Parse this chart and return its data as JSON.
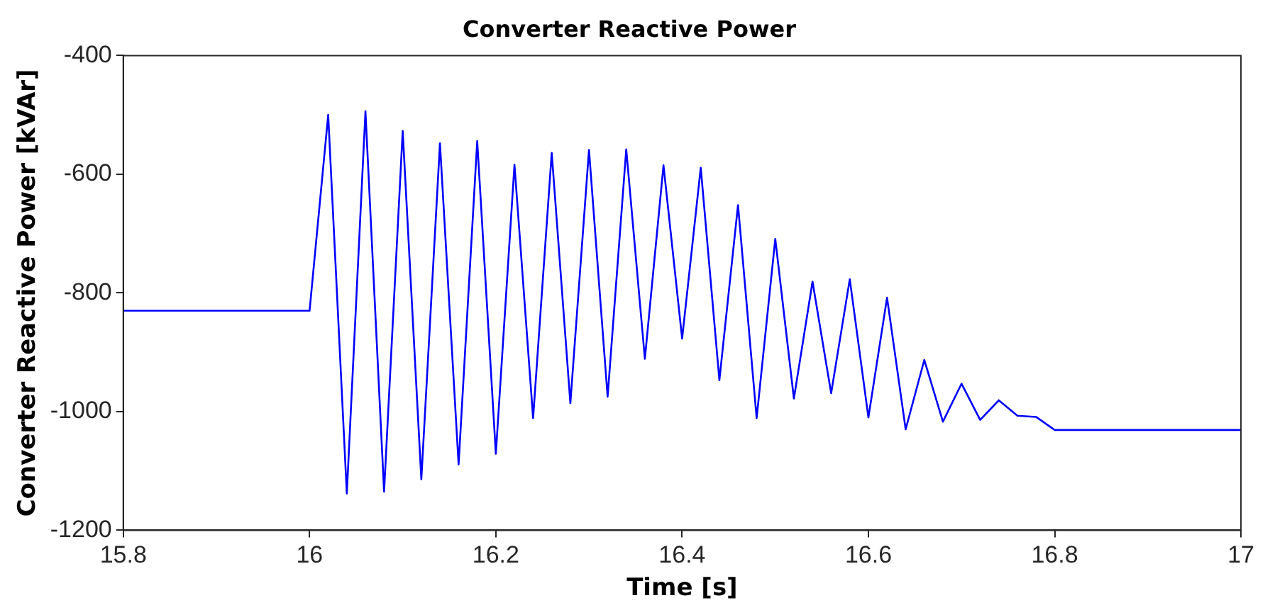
{
  "chart_data": {
    "type": "line",
    "title": "Converter Reactive Power",
    "xlabel": "Time [s]",
    "ylabel": "Converter Reactive Power [kVAr]",
    "x": [
      15.8,
      16.0,
      16.02,
      16.04,
      16.06,
      16.08,
      16.1,
      16.12,
      16.14,
      16.16,
      16.18,
      16.2,
      16.22,
      16.24,
      16.26,
      16.28,
      16.3,
      16.32,
      16.34,
      16.36,
      16.38,
      16.4,
      16.42,
      16.44,
      16.46,
      16.48,
      16.5,
      16.52,
      16.54,
      16.56,
      16.58,
      16.6,
      16.62,
      16.64,
      16.66,
      16.68,
      16.7,
      16.72,
      16.74,
      16.76,
      16.78,
      16.8,
      17.0
    ],
    "series": [
      {
        "color": "#0000ff",
        "values": [
          -830,
          -830,
          -500,
          -1138,
          -494,
          -1135,
          -527,
          -1114,
          -548,
          -1089,
          -544,
          -1071,
          -584,
          -1011,
          -564,
          -986,
          -559,
          -975,
          -558,
          -911,
          -585,
          -877,
          -589,
          -947,
          -652,
          -1011,
          -709,
          -978,
          -781,
          -969,
          -777,
          -1010,
          -808,
          -1030,
          -913,
          -1017,
          -953,
          -1014,
          -981,
          -1007,
          -1009,
          -1031,
          -1031
        ]
      }
    ],
    "xlim": [
      15.8,
      17
    ],
    "xticks": [
      15.8,
      16,
      16.2,
      16.4,
      16.6,
      16.8,
      17
    ],
    "ylim": [
      -1200,
      -400
    ],
    "yticks": [
      -1200,
      -1000,
      -800,
      -600,
      -400
    ],
    "grid": false,
    "legend": false,
    "marker": "none",
    "line_style": "solid"
  }
}
